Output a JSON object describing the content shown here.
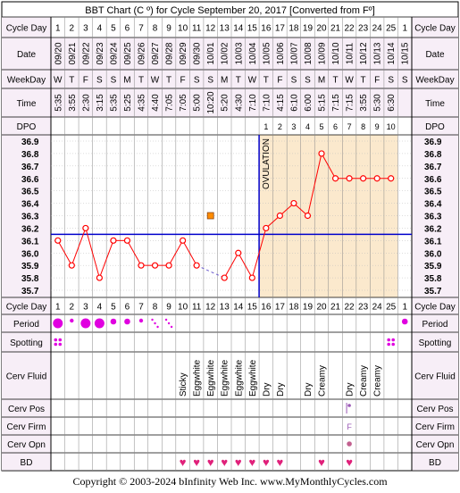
{
  "chart_data": {
    "type": "line",
    "title": "BBT Chart (C º) for Cycle September 20, 2017  [Converted from Fº]",
    "row_labels": {
      "cycle_day": "Cycle Day",
      "date": "Date",
      "weekday": "WeekDay",
      "time": "Time",
      "dpo": "DPO",
      "period": "Period",
      "spotting": "Spotting",
      "cerv_fluid": "Cerv Fluid",
      "cerv_pos": "Cerv Pos",
      "cerv_firm": "Cerv Firm",
      "cerv_opn": "Cerv Opn",
      "bd": "BD"
    },
    "cycle_days": [
      "1",
      "2",
      "3",
      "4",
      "5",
      "6",
      "7",
      "8",
      "9",
      "10",
      "11",
      "12",
      "13",
      "14",
      "15",
      "16",
      "17",
      "18",
      "19",
      "20",
      "21",
      "22",
      "23",
      "24",
      "25",
      "1"
    ],
    "dates": [
      "09/20",
      "09/21",
      "09/22",
      "09/23",
      "09/24",
      "09/25",
      "09/26",
      "09/27",
      "09/28",
      "09/29",
      "09/30",
      "10/01",
      "10/02",
      "10/03",
      "10/04",
      "10/05",
      "10/06",
      "10/07",
      "10/08",
      "10/09",
      "10/10",
      "10/11",
      "10/12",
      "10/13",
      "10/14",
      "10/15"
    ],
    "weekdays": [
      "W",
      "T",
      "F",
      "S",
      "S",
      "M",
      "T",
      "W",
      "T",
      "F",
      "S",
      "S",
      "M",
      "T",
      "W",
      "T",
      "F",
      "S",
      "S",
      "M",
      "T",
      "W",
      "T",
      "F",
      "S",
      "S"
    ],
    "times": [
      "5:35",
      "3:55",
      "2:30",
      "3:15",
      "5:35",
      "5:25",
      "4:35",
      "4:40",
      "7:05",
      "7:05",
      "5:00",
      "10:20",
      "5:20",
      "4:30",
      "7:10",
      "7:10",
      "4:15",
      "6:10",
      "6:00",
      "5:15",
      "7:15",
      "7:15",
      "3:55",
      "5:30",
      "6:30",
      ""
    ],
    "dpo": [
      "",
      "",
      "",
      "",
      "",
      "",
      "",
      "",
      "",
      "",
      "",
      "",
      "",
      "",
      "",
      "1",
      "2",
      "3",
      "4",
      "5",
      "6",
      "7",
      "8",
      "9",
      "10",
      ""
    ],
    "y_ticks": [
      "36.9",
      "36.8",
      "36.7",
      "36.6",
      "36.5",
      "36.4",
      "36.3",
      "36.2",
      "36.1",
      "36.0",
      "35.9",
      "35.8",
      "35.7"
    ],
    "ylim": [
      35.7,
      36.9
    ],
    "temperatures": [
      36.1,
      35.9,
      36.2,
      35.8,
      36.1,
      36.1,
      35.9,
      35.9,
      35.9,
      36.1,
      35.9,
      null,
      35.8,
      36.0,
      35.8,
      36.2,
      36.3,
      36.4,
      36.3,
      36.8,
      36.6,
      36.6,
      36.6,
      36.6,
      36.6,
      null
    ],
    "discarded": [
      {
        "day": 12,
        "value": 36.3
      }
    ],
    "coverline": 36.15,
    "ovulation_day": 15,
    "ovulation_label": "OVULATION",
    "period": [
      3,
      1,
      3,
      3,
      2,
      2,
      1,
      4,
      4,
      0,
      0,
      0,
      0,
      0,
      0,
      0,
      0,
      0,
      0,
      0,
      0,
      0,
      0,
      0,
      0,
      2
    ],
    "spotting": [
      1,
      0,
      0,
      0,
      0,
      0,
      0,
      0,
      0,
      0,
      0,
      0,
      0,
      0,
      0,
      0,
      0,
      0,
      0,
      0,
      0,
      0,
      0,
      0,
      1,
      0
    ],
    "cerv_fluid": [
      "",
      "",
      "",
      "",
      "",
      "",
      "",
      "",
      "",
      "Sticky",
      "Eggwhite",
      "Eggwhite",
      "Eggwhite",
      "Eggwhite",
      "Eggwhite",
      "Dry",
      "Dry",
      "",
      "Dry",
      "Creamy",
      "",
      "Dry",
      "Creamy",
      "Creamy",
      "",
      ""
    ],
    "cerv_pos_marks": [
      22
    ],
    "cerv_firm": [
      "",
      "",
      "",
      "",
      "",
      "",
      "",
      "",
      "",
      "",
      "",
      "",
      "",
      "",
      "",
      "",
      "",
      "",
      "",
      "",
      "",
      "F",
      "",
      "",
      "",
      ""
    ],
    "cerv_opn_marks": [
      22
    ],
    "bd": [
      0,
      0,
      0,
      0,
      0,
      0,
      0,
      0,
      0,
      1,
      1,
      1,
      1,
      1,
      1,
      1,
      1,
      0,
      0,
      1,
      0,
      1,
      0,
      0,
      0,
      0
    ],
    "colors": {
      "grid": "#000000",
      "header_bg": "#f7eef7",
      "post_ovulation_bg": "#fbe9cd",
      "temp_line": "#ff0000",
      "coverline": "#0000cc",
      "ovulation_line": "#0000cc",
      "period": "#e000e0",
      "bd": "#e0207a",
      "discarded": "#ff8c00"
    },
    "copyright": "Copyright © 2003-2024 bInfinity Web Inc.    www.MyMonthlyCycles.com"
  }
}
